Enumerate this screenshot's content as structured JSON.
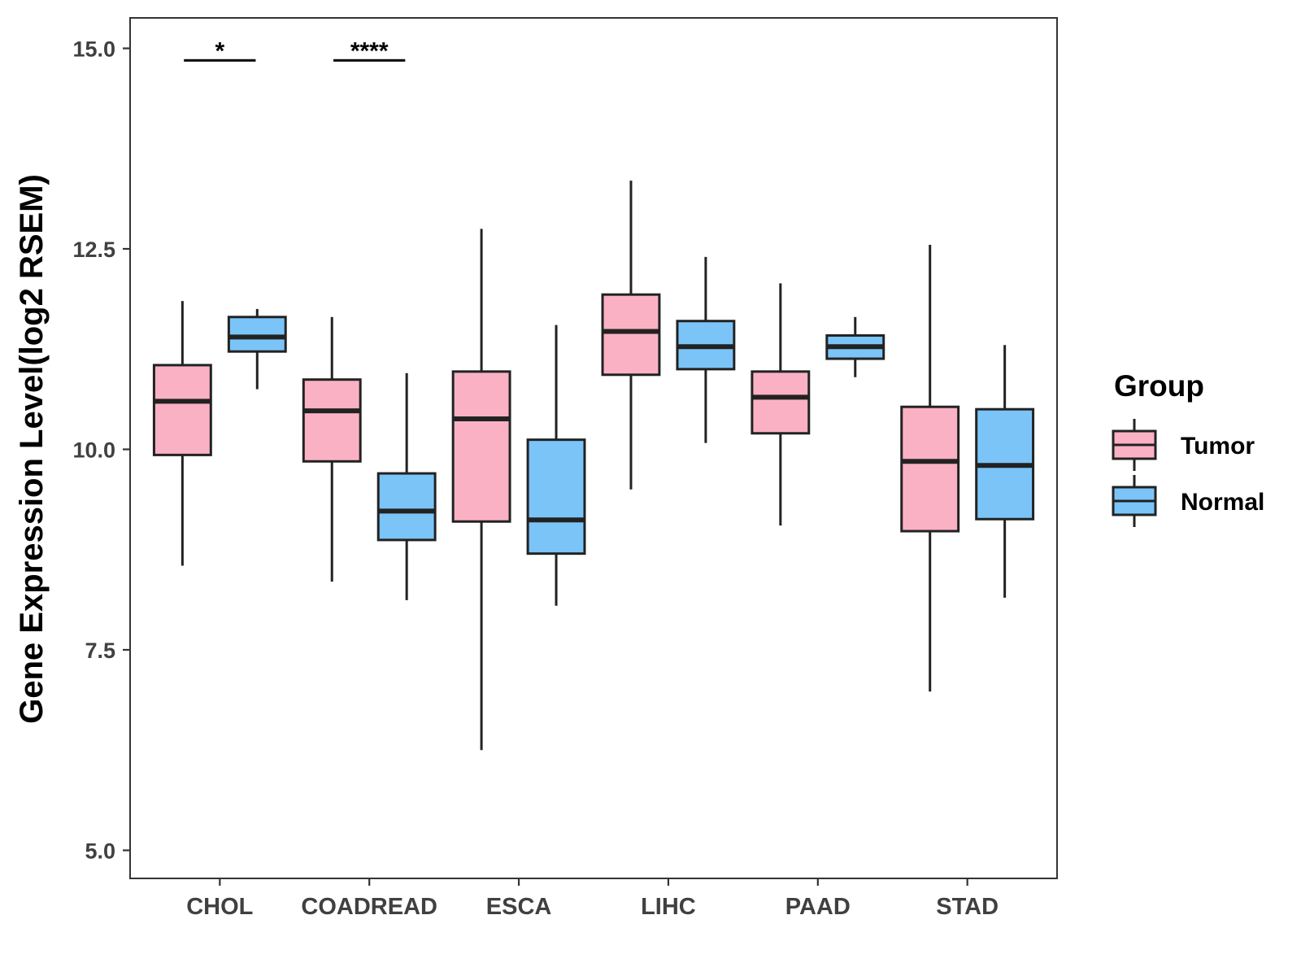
{
  "chart_data": {
    "type": "boxplot",
    "title": "",
    "xlabel": "",
    "ylabel": "Gene Expression Level(log2 RSEM)",
    "ylim": [
      4.65,
      15.38
    ],
    "yticks": [
      5.0,
      7.5,
      10.0,
      12.5,
      15.0
    ],
    "ytick_labels": [
      "5.0",
      "7.5",
      "10.0",
      "12.5",
      "15.0"
    ],
    "grid": false,
    "categories": [
      "CHOL",
      "COADREAD",
      "ESCA",
      "LIHC",
      "PAAD",
      "STAD"
    ],
    "legend": {
      "title": "Group",
      "position": "right",
      "items": [
        {
          "name": "Tumor",
          "color": "#FBB1C4"
        },
        {
          "name": "Normal",
          "color": "#7BC4F8"
        }
      ]
    },
    "series": [
      {
        "name": "Tumor",
        "color": "#FBB1C4",
        "boxes": [
          {
            "min": 8.55,
            "q1": 9.93,
            "median": 10.6,
            "q3": 11.05,
            "max": 11.85
          },
          {
            "min": 8.35,
            "q1": 9.85,
            "median": 10.48,
            "q3": 10.87,
            "max": 11.65
          },
          {
            "min": 6.25,
            "q1": 9.1,
            "median": 10.38,
            "q3": 10.97,
            "max": 12.75
          },
          {
            "min": 9.5,
            "q1": 10.93,
            "median": 11.47,
            "q3": 11.93,
            "max": 13.35
          },
          {
            "min": 9.05,
            "q1": 10.2,
            "median": 10.65,
            "q3": 10.97,
            "max": 12.07
          },
          {
            "min": 6.98,
            "q1": 8.98,
            "median": 9.85,
            "q3": 10.53,
            "max": 12.55
          }
        ]
      },
      {
        "name": "Normal",
        "color": "#7BC4F8",
        "boxes": [
          {
            "min": 10.75,
            "q1": 11.22,
            "median": 11.4,
            "q3": 11.65,
            "max": 11.75
          },
          {
            "min": 8.12,
            "q1": 8.87,
            "median": 9.23,
            "q3": 9.7,
            "max": 10.95
          },
          {
            "min": 8.05,
            "q1": 8.7,
            "median": 9.12,
            "q3": 10.12,
            "max": 11.55
          },
          {
            "min": 10.08,
            "q1": 11.0,
            "median": 11.28,
            "q3": 11.6,
            "max": 12.4
          },
          {
            "min": 10.9,
            "q1": 11.13,
            "median": 11.28,
            "q3": 11.42,
            "max": 11.65
          },
          {
            "min": 8.15,
            "q1": 9.13,
            "median": 9.8,
            "q3": 10.5,
            "max": 11.3
          }
        ]
      }
    ],
    "annotations": [
      {
        "category": "CHOL",
        "text": "*"
      },
      {
        "category": "COADREAD",
        "text": "****"
      }
    ]
  }
}
